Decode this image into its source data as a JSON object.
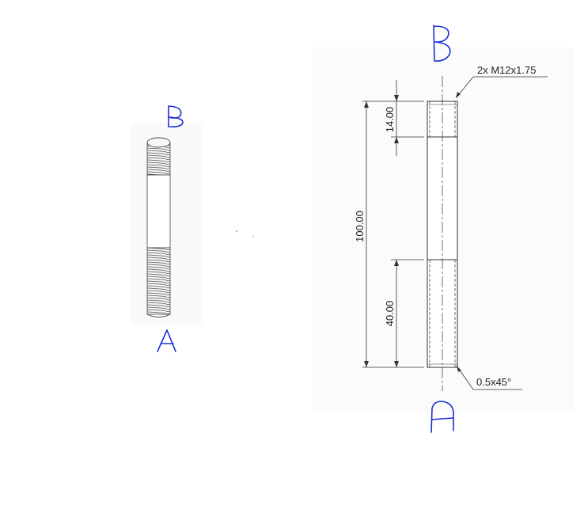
{
  "labels": {
    "end_top": "B",
    "end_bottom": "A"
  },
  "drawing": {
    "thread_callout": "2x M12x1.75",
    "chamfer_callout": "0.5x45°",
    "dim_overall": "100.00",
    "dim_top_thread": "14.00",
    "dim_bottom_thread": "40.00"
  },
  "colors": {
    "annotation_ink": "#1d2fd6",
    "line": "#333333"
  }
}
